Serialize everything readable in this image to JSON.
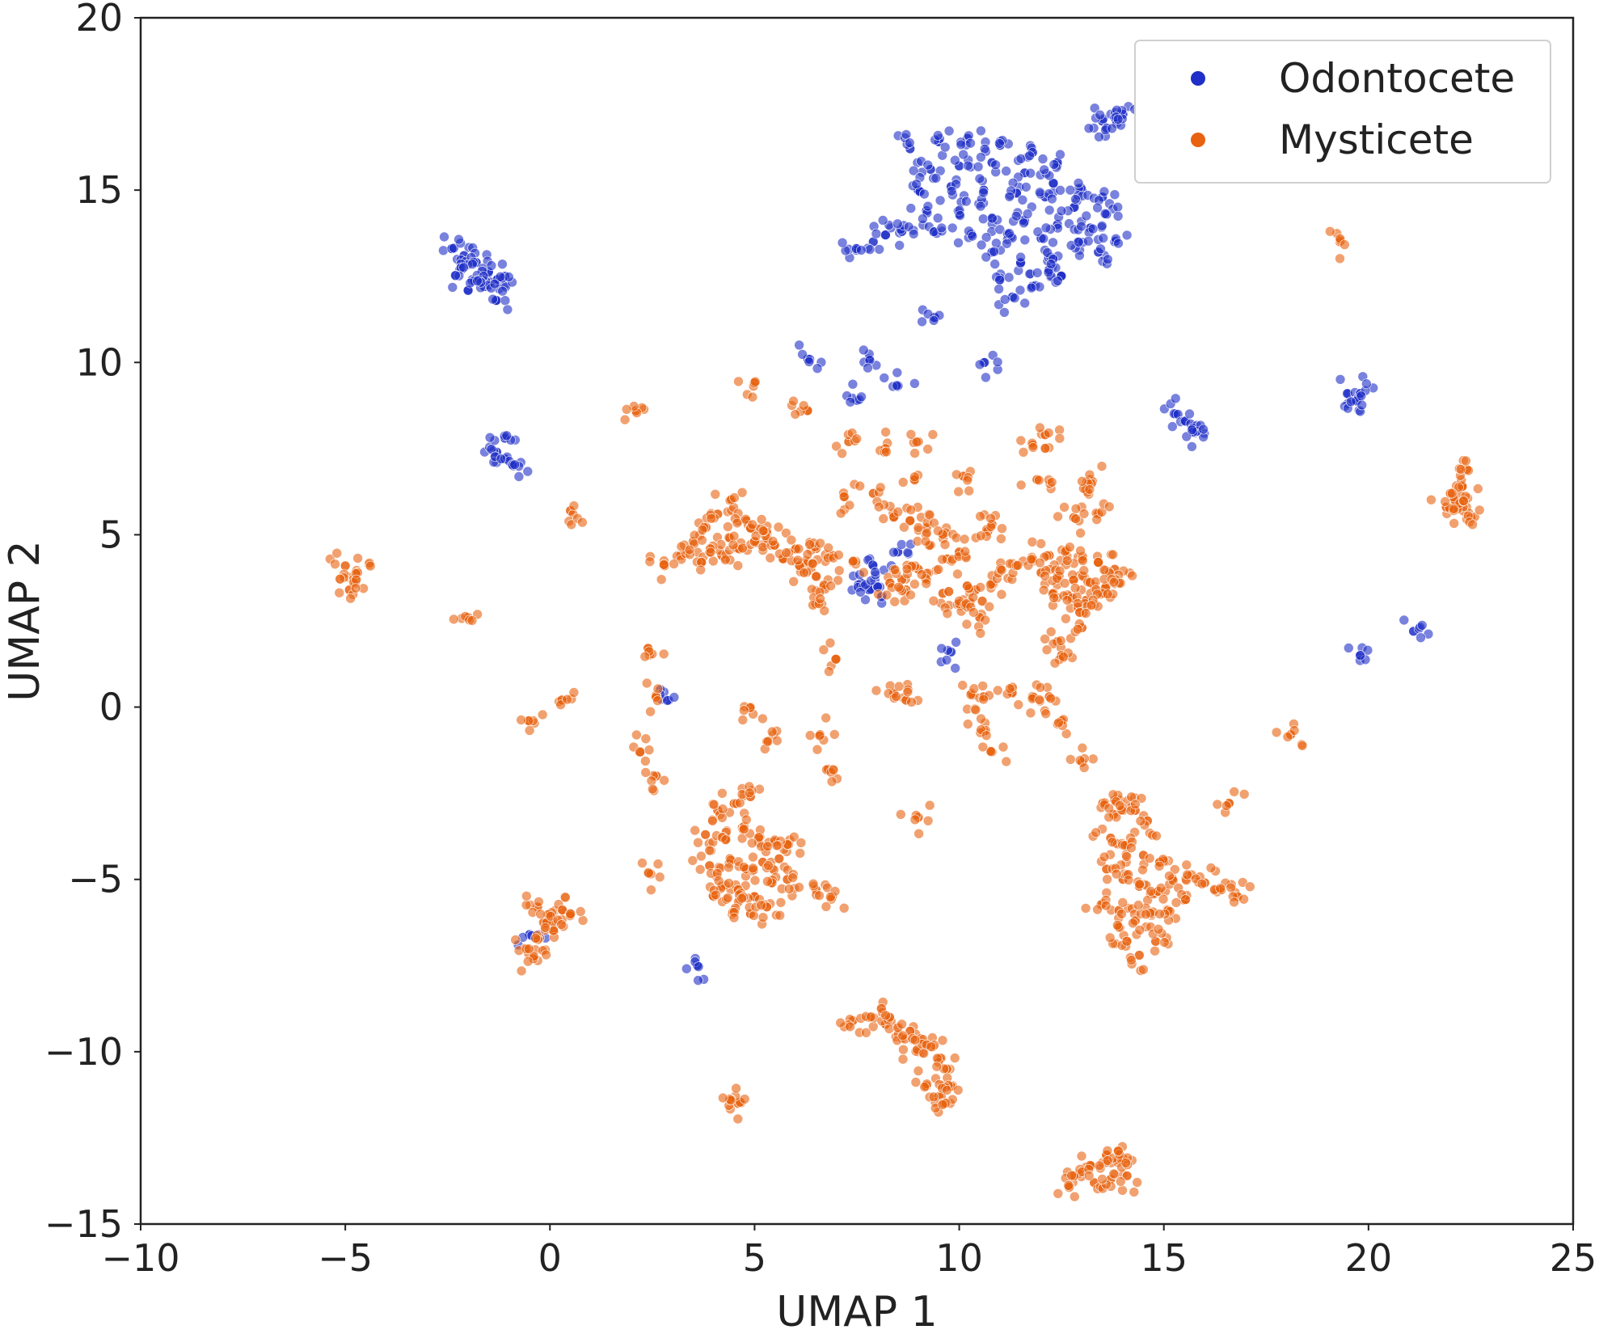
{
  "chart_data": {
    "type": "scatter",
    "title": "",
    "xlabel": "UMAP 1",
    "ylabel": "UMAP 2",
    "xlim": [
      -10,
      25
    ],
    "ylim": [
      -15,
      20
    ],
    "xticks": [
      -10,
      -5,
      0,
      5,
      10,
      15,
      20,
      25
    ],
    "yticks": [
      -15,
      -10,
      -5,
      0,
      5,
      10,
      15,
      20
    ],
    "xtick_labels": [
      "−10",
      "−5",
      "0",
      "5",
      "10",
      "15",
      "20",
      "25"
    ],
    "ytick_labels": [
      "−15",
      "−10",
      "−5",
      "0",
      "5",
      "10",
      "15",
      "20"
    ],
    "grid": false,
    "legend_position": "top-right",
    "series": [
      {
        "name": "Odontocete",
        "color": "#1f2fc7",
        "points": [
          [
            8.8,
            16.2
          ],
          [
            9.5,
            16.4
          ],
          [
            10.2,
            16.5
          ],
          [
            11.0,
            16.3
          ],
          [
            11.8,
            16.1
          ],
          [
            12.4,
            15.8
          ],
          [
            9.3,
            15.6
          ],
          [
            10.0,
            15.7
          ],
          [
            10.8,
            15.8
          ],
          [
            11.6,
            15.5
          ],
          [
            12.3,
            15.2
          ],
          [
            13.0,
            15.0
          ],
          [
            13.5,
            14.8
          ],
          [
            9.0,
            15.0
          ],
          [
            9.8,
            15.1
          ],
          [
            10.6,
            15.0
          ],
          [
            11.4,
            14.9
          ],
          [
            12.1,
            14.8
          ],
          [
            12.8,
            14.5
          ],
          [
            13.6,
            14.3
          ],
          [
            9.2,
            14.4
          ],
          [
            10.0,
            14.3
          ],
          [
            10.8,
            14.2
          ],
          [
            11.6,
            14.1
          ],
          [
            12.4,
            14.0
          ],
          [
            13.2,
            13.9
          ],
          [
            8.2,
            13.7
          ],
          [
            8.6,
            13.8
          ],
          [
            9.4,
            13.8
          ],
          [
            10.3,
            13.7
          ],
          [
            11.2,
            13.7
          ],
          [
            12.0,
            13.6
          ],
          [
            12.9,
            13.5
          ],
          [
            13.8,
            13.5
          ],
          [
            7.5,
            13.3
          ],
          [
            7.9,
            13.5
          ],
          [
            10.8,
            13.2
          ],
          [
            11.5,
            12.9
          ],
          [
            12.2,
            12.7
          ],
          [
            11.0,
            12.4
          ],
          [
            11.8,
            12.2
          ],
          [
            12.5,
            12.5
          ],
          [
            11.3,
            11.9
          ],
          [
            12.3,
            13.0
          ],
          [
            13.4,
            13.2
          ],
          [
            13.5,
            17.0
          ],
          [
            13.8,
            17.1
          ],
          [
            14.0,
            17.2
          ],
          [
            13.6,
            16.8
          ],
          [
            -2.4,
            13.3
          ],
          [
            -2.1,
            13.1
          ],
          [
            -1.8,
            12.9
          ],
          [
            -1.5,
            12.6
          ],
          [
            -1.3,
            12.4
          ],
          [
            -2.2,
            12.7
          ],
          [
            -1.9,
            12.4
          ],
          [
            -1.6,
            12.2
          ],
          [
            -2.0,
            12.1
          ],
          [
            -1.3,
            11.8
          ],
          [
            -1.1,
            12.5
          ],
          [
            -1.3,
            7.4
          ],
          [
            -1.1,
            7.2
          ],
          [
            -0.9,
            7.0
          ],
          [
            -1.1,
            7.8
          ],
          [
            15.3,
            8.5
          ],
          [
            15.5,
            8.3
          ],
          [
            15.7,
            8.1
          ],
          [
            15.8,
            8.0
          ],
          [
            19.5,
            9.1
          ],
          [
            19.7,
            8.9
          ],
          [
            19.8,
            9.1
          ],
          [
            9.4,
            11.3
          ],
          [
            6.3,
            10.1
          ],
          [
            7.8,
            10.1
          ],
          [
            10.6,
            10.0
          ],
          [
            8.5,
            9.3
          ],
          [
            7.5,
            8.9
          ],
          [
            7.6,
            3.6
          ],
          [
            7.8,
            3.4
          ],
          [
            8.0,
            3.5
          ],
          [
            7.9,
            4.1
          ],
          [
            8.5,
            4.5
          ],
          [
            2.9,
            0.2
          ],
          [
            9.8,
            1.6
          ],
          [
            19.8,
            1.5
          ],
          [
            21.1,
            2.2
          ],
          [
            3.6,
            -7.5
          ],
          [
            -0.5,
            -6.6
          ]
        ]
      },
      {
        "name": "Mysticete",
        "color": "#e8620f",
        "points": [
          [
            2.8,
            4.1
          ],
          [
            3.2,
            4.4
          ],
          [
            3.5,
            4.8
          ],
          [
            3.8,
            5.2
          ],
          [
            4.1,
            5.6
          ],
          [
            4.4,
            6.0
          ],
          [
            4.2,
            4.4
          ],
          [
            4.6,
            4.6
          ],
          [
            5.0,
            4.8
          ],
          [
            5.3,
            5.1
          ],
          [
            4.8,
            5.4
          ],
          [
            3.7,
            4.2
          ],
          [
            4.4,
            4.9
          ],
          [
            5.5,
            4.7
          ],
          [
            3.9,
            4.5
          ],
          [
            4.9,
            5.2
          ],
          [
            5.7,
            4.3
          ],
          [
            6.0,
            4.6
          ],
          [
            6.3,
            4.2
          ],
          [
            6.5,
            3.8
          ],
          [
            6.7,
            3.5
          ],
          [
            6.1,
            4.1
          ],
          [
            6.5,
            4.6
          ],
          [
            6.9,
            4.4
          ],
          [
            7.4,
            4.2
          ],
          [
            6.5,
            3.0
          ],
          [
            8.4,
            5.5
          ],
          [
            8.8,
            5.4
          ],
          [
            9.2,
            5.2
          ],
          [
            9.6,
            5.0
          ],
          [
            9.7,
            4.3
          ],
          [
            10.0,
            4.5
          ],
          [
            9.3,
            4.7
          ],
          [
            9.0,
            4.0
          ],
          [
            8.3,
            3.6
          ],
          [
            8.7,
            3.4
          ],
          [
            9.2,
            3.7
          ],
          [
            9.6,
            3.3
          ],
          [
            10.0,
            3.0
          ],
          [
            10.4,
            3.4
          ],
          [
            10.8,
            3.6
          ],
          [
            11.0,
            4.0
          ],
          [
            11.4,
            4.1
          ],
          [
            10.2,
            3.5
          ],
          [
            10.7,
            5.1
          ],
          [
            8.6,
            3.7
          ],
          [
            11.8,
            4.3
          ],
          [
            12.2,
            4.4
          ],
          [
            12.6,
            4.5
          ],
          [
            13.0,
            4.3
          ],
          [
            13.4,
            4.2
          ],
          [
            13.8,
            4.0
          ],
          [
            12.0,
            3.9
          ],
          [
            12.4,
            3.8
          ],
          [
            12.8,
            3.7
          ],
          [
            13.2,
            3.6
          ],
          [
            13.6,
            3.5
          ],
          [
            12.3,
            3.3
          ],
          [
            12.7,
            3.2
          ],
          [
            13.1,
            3.1
          ],
          [
            13.5,
            3.3
          ],
          [
            12.9,
            2.9
          ],
          [
            13.9,
            3.6
          ],
          [
            -5.0,
            4.1
          ],
          [
            -4.8,
            3.7
          ],
          [
            -4.9,
            3.4
          ],
          [
            -4.7,
            3.9
          ],
          [
            22.1,
            6.0
          ],
          [
            22.3,
            6.4
          ],
          [
            22.4,
            6.9
          ],
          [
            22.2,
            5.8
          ],
          [
            22.5,
            5.5
          ],
          [
            21.9,
            5.8
          ],
          [
            22.0,
            6.2
          ],
          [
            4.1,
            -3.0
          ],
          [
            4.5,
            -2.8
          ],
          [
            4.9,
            -2.6
          ],
          [
            3.8,
            -3.7
          ],
          [
            4.3,
            -3.8
          ],
          [
            4.7,
            -3.5
          ],
          [
            5.1,
            -3.8
          ],
          [
            5.5,
            -3.9
          ],
          [
            5.8,
            -4.0
          ],
          [
            3.9,
            -4.6
          ],
          [
            4.4,
            -4.4
          ],
          [
            4.8,
            -4.7
          ],
          [
            5.2,
            -4.5
          ],
          [
            5.6,
            -4.4
          ],
          [
            4.2,
            -5.2
          ],
          [
            4.6,
            -5.3
          ],
          [
            5.0,
            -5.5
          ],
          [
            5.4,
            -5.1
          ],
          [
            4.5,
            -5.9
          ],
          [
            4.9,
            -6.0
          ],
          [
            5.3,
            -5.8
          ],
          [
            4.0,
            -5.5
          ],
          [
            5.8,
            -5.0
          ],
          [
            -0.3,
            -5.8
          ],
          [
            0.0,
            -6.0
          ],
          [
            0.3,
            -5.9
          ],
          [
            -0.3,
            -6.7
          ],
          [
            -0.1,
            -6.3
          ],
          [
            -0.6,
            -7.0
          ],
          [
            -0.4,
            -7.3
          ],
          [
            0.1,
            -6.5
          ],
          [
            0.5,
            -6.0
          ],
          [
            13.5,
            -2.8
          ],
          [
            13.8,
            -2.7
          ],
          [
            14.0,
            -3.0
          ],
          [
            14.3,
            -3.0
          ],
          [
            14.6,
            -3.3
          ],
          [
            13.7,
            -3.8
          ],
          [
            14.1,
            -4.0
          ],
          [
            14.5,
            -4.3
          ],
          [
            14.9,
            -4.5
          ],
          [
            13.6,
            -4.7
          ],
          [
            14.0,
            -5.0
          ],
          [
            14.4,
            -5.2
          ],
          [
            14.8,
            -5.4
          ],
          [
            15.2,
            -5.0
          ],
          [
            15.6,
            -4.9
          ],
          [
            16.0,
            -5.1
          ],
          [
            16.4,
            -5.3
          ],
          [
            16.8,
            -5.5
          ],
          [
            13.5,
            -5.7
          ],
          [
            13.9,
            -5.9
          ],
          [
            14.3,
            -6.2
          ],
          [
            14.7,
            -6.0
          ],
          [
            15.1,
            -5.9
          ],
          [
            14.1,
            -6.8
          ],
          [
            14.4,
            -7.2
          ],
          [
            14.8,
            -6.8
          ],
          [
            15.5,
            -5.6
          ],
          [
            13.9,
            -6.4
          ],
          [
            7.4,
            -9.1
          ],
          [
            7.8,
            -9.0
          ],
          [
            8.2,
            -9.2
          ],
          [
            8.6,
            -9.6
          ],
          [
            9.0,
            -10.0
          ],
          [
            9.2,
            -9.8
          ],
          [
            9.5,
            -10.2
          ],
          [
            9.7,
            -10.5
          ],
          [
            9.8,
            -11.0
          ],
          [
            9.5,
            -11.3
          ],
          [
            9.2,
            -11.0
          ],
          [
            8.3,
            -9.0
          ],
          [
            8.8,
            -9.4
          ],
          [
            9.6,
            -11.5
          ],
          [
            12.8,
            -13.6
          ],
          [
            13.2,
            -13.3
          ],
          [
            13.6,
            -13.0
          ],
          [
            14.0,
            -13.1
          ],
          [
            13.3,
            -13.8
          ],
          [
            13.7,
            -13.7
          ],
          [
            14.1,
            -13.6
          ],
          [
            12.7,
            -13.9
          ],
          [
            13.9,
            -12.9
          ],
          [
            2.1,
            8.6
          ],
          [
            5.0,
            9.4
          ],
          [
            6.3,
            8.6
          ],
          [
            7.3,
            7.7
          ],
          [
            8.2,
            7.5
          ],
          [
            9.0,
            7.7
          ],
          [
            11.8,
            7.6
          ],
          [
            12.1,
            7.9
          ],
          [
            11.9,
            6.6
          ],
          [
            10.1,
            6.7
          ],
          [
            8.9,
            6.6
          ],
          [
            13.2,
            6.6
          ],
          [
            13.1,
            6.3
          ],
          [
            12.8,
            5.5
          ],
          [
            13.4,
            5.6
          ],
          [
            7.2,
            6.1
          ],
          [
            7.9,
            6.2
          ],
          [
            10.8,
            5.3
          ],
          [
            0.5,
            5.7
          ],
          [
            -2.0,
            2.6
          ],
          [
            2.4,
            1.7
          ],
          [
            7.0,
            1.4
          ],
          [
            12.4,
            1.9
          ],
          [
            13.0,
            2.3
          ],
          [
            12.5,
            1.5
          ],
          [
            10.2,
            2.9
          ],
          [
            10.5,
            2.6
          ],
          [
            2.6,
            0.3
          ],
          [
            4.9,
            0.0
          ],
          [
            8.4,
            0.4
          ],
          [
            8.7,
            0.2
          ],
          [
            10.3,
            0.4
          ],
          [
            10.6,
            0.3
          ],
          [
            11.3,
            0.4
          ],
          [
            11.8,
            0.3
          ],
          [
            12.2,
            0.3
          ],
          [
            12.5,
            -0.4
          ],
          [
            13.0,
            -1.6
          ],
          [
            10.6,
            -0.7
          ],
          [
            10.8,
            -1.3
          ],
          [
            6.6,
            -0.8
          ],
          [
            6.8,
            -1.8
          ],
          [
            5.3,
            -1.0
          ],
          [
            2.2,
            -1.3
          ],
          [
            2.6,
            -2.0
          ],
          [
            9.0,
            -3.2
          ],
          [
            2.4,
            -4.8
          ],
          [
            6.5,
            -5.3
          ],
          [
            6.9,
            -5.5
          ],
          [
            4.6,
            -11.5
          ],
          [
            4.4,
            -11.4
          ],
          [
            18.1,
            -0.8
          ],
          [
            16.6,
            -2.8
          ],
          [
            19.3,
            13.5
          ],
          [
            -0.5,
            -0.4
          ],
          [
            0.3,
            0.2
          ]
        ]
      }
    ]
  }
}
